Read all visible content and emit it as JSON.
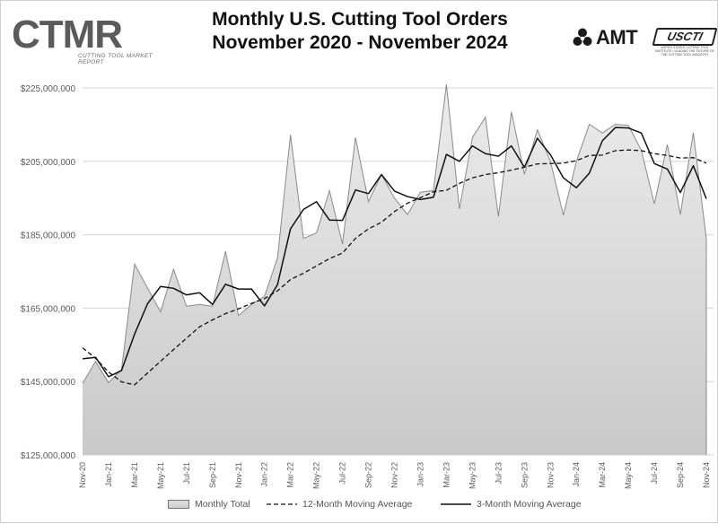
{
  "header": {
    "title_line1": "Monthly U.S. Cutting Tool Orders",
    "title_line2": "November 2020 - November 2024"
  },
  "logos": {
    "ctmr": "CTMR",
    "ctmr_tagline": "CUTTING TOOL MARKET REPORT",
    "amt": "AMT",
    "usct": "USCTI",
    "usct_tagline": "UNITED STATES CUTTING TOOL INSTITUTE • LEADING THE FUTURE OF THE CUTTING TOOL INDUSTRY"
  },
  "legend": {
    "monthly": "Monthly Total",
    "ma12": "12-Month Moving Average",
    "ma3": "3-Month Moving Average"
  },
  "colors": {
    "area_top": "#e4e4e4",
    "area_bottom": "#cdcdcd",
    "area_stroke": "#8a8a8a",
    "line": "#111111",
    "grid": "#d6d6d6",
    "axis_text": "#5a5a5a"
  },
  "chart_data": {
    "type": "area",
    "title": "Monthly U.S. Cutting Tool Orders November 2020 - November 2024",
    "xlabel": "",
    "ylabel": "",
    "ylim": [
      125000000,
      225000000
    ],
    "yticks": [
      125000000,
      145000000,
      165000000,
      185000000,
      205000000,
      225000000
    ],
    "ytick_labels": [
      "$125,000,000",
      "$145,000,000",
      "$165,000,000",
      "$185,000,000",
      "$205,000,000",
      "$225,000,000"
    ],
    "x_tick_labels": [
      "Nov-20",
      "Jan-21",
      "Mar-21",
      "May-21",
      "Jul-21",
      "Sep-21",
      "Nov-21",
      "Jan-22",
      "Mar-22",
      "May-22",
      "Jul-22",
      "Sep-22",
      "Nov-22",
      "Jan-23",
      "Mar-23",
      "May-23",
      "Jul-23",
      "Sep-23",
      "Nov-23",
      "Jan-24",
      "Mar-24",
      "May-24",
      "Jul-24",
      "Sep-24",
      "Nov-24"
    ],
    "grid": "horizontal",
    "legend": "bottom",
    "x": [
      "Nov-20",
      "Dec-20",
      "Jan-21",
      "Feb-21",
      "Mar-21",
      "Apr-21",
      "May-21",
      "Jun-21",
      "Jul-21",
      "Aug-21",
      "Sep-21",
      "Oct-21",
      "Nov-21",
      "Dec-21",
      "Jan-22",
      "Feb-22",
      "Mar-22",
      "Apr-22",
      "May-22",
      "Jun-22",
      "Jul-22",
      "Aug-22",
      "Sep-22",
      "Oct-22",
      "Nov-22",
      "Dec-22",
      "Jan-23",
      "Feb-23",
      "Mar-23",
      "Apr-23",
      "May-23",
      "Jun-23",
      "Jul-23",
      "Aug-23",
      "Sep-23",
      "Oct-23",
      "Nov-23",
      "Dec-23",
      "Jan-24",
      "Feb-24",
      "Mar-24",
      "Apr-24",
      "May-24",
      "Jun-24",
      "Jul-24",
      "Aug-24",
      "Sep-24",
      "Oct-24",
      "Nov-24"
    ],
    "series": [
      {
        "name": "Monthly Total",
        "style": "area",
        "values": [
          144500000,
          150500000,
          144700000,
          148300000,
          177000000,
          170500000,
          164000000,
          175600000,
          165500000,
          166000000,
          165500000,
          180500000,
          163000000,
          166000000,
          168200000,
          178700000,
          212200000,
          184000000,
          185500000,
          197000000,
          182500000,
          211500000,
          194000000,
          201400000,
          195000000,
          190500000,
          196600000,
          197000000,
          226000000,
          192000000,
          211500000,
          217000000,
          190000000,
          218500000,
          201500000,
          213600000,
          205000000,
          190300000,
          205000000,
          215100000,
          212700000,
          215100000,
          214800000,
          208000000,
          193400000,
          209600000,
          190500000,
          212800000,
          183900000
        ]
      },
      {
        "name": "12-Month Moving Average",
        "style": "dashed",
        "values": [
          154200000,
          151300000,
          147600000,
          144900000,
          144100000,
          147300000,
          150500000,
          153700000,
          156800000,
          159900000,
          161800000,
          163500000,
          164800000,
          166300000,
          167600000,
          169700000,
          172800000,
          174500000,
          176500000,
          178500000,
          180000000,
          184000000,
          186600000,
          188400000,
          191300000,
          193600000,
          195100000,
          196700000,
          197100000,
          199000000,
          200500000,
          201400000,
          201900000,
          202600000,
          203400000,
          204300000,
          204400000,
          204500000,
          205200000,
          206600000,
          206700000,
          207900000,
          208100000,
          207900000,
          207100000,
          206600000,
          205900000,
          206000000,
          204500000
        ]
      },
      {
        "name": "3-Month Moving Average",
        "style": "solid",
        "values": [
          151200000,
          151600000,
          146300000,
          148000000,
          157900000,
          166200000,
          170900000,
          170400000,
          168600000,
          169200000,
          166000000,
          171500000,
          170200000,
          170200000,
          165600000,
          171400000,
          186600000,
          191900000,
          194000000,
          189000000,
          188900000,
          197200000,
          196200000,
          201400000,
          196900000,
          195400000,
          194600000,
          195200000,
          206900000,
          205000000,
          209200000,
          207100000,
          206400000,
          209200000,
          203400000,
          211300000,
          206800000,
          200500000,
          197800000,
          201800000,
          210600000,
          214200000,
          214100000,
          212700000,
          204400000,
          202900000,
          196500000,
          203800000,
          194800000
        ]
      }
    ]
  }
}
